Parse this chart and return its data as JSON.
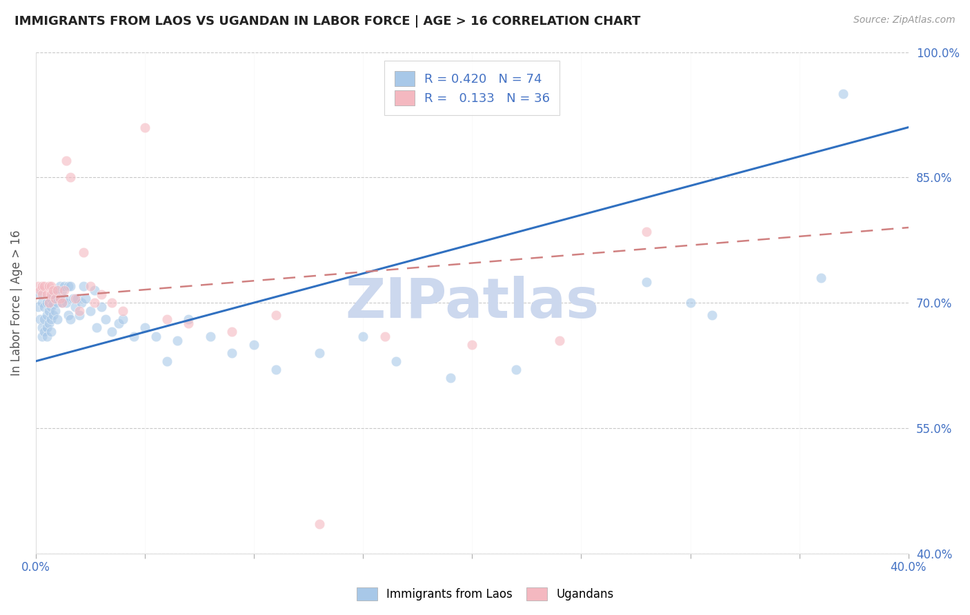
{
  "title": "IMMIGRANTS FROM LAOS VS UGANDAN IN LABOR FORCE | AGE > 16 CORRELATION CHART",
  "source_text": "Source: ZipAtlas.com",
  "ylabel": "In Labor Force | Age > 16",
  "xlim": [
    0.0,
    0.4
  ],
  "ylim": [
    0.4,
    1.0
  ],
  "xticks": [
    0.0,
    0.05,
    0.1,
    0.15,
    0.2,
    0.25,
    0.3,
    0.35,
    0.4
  ],
  "yticks": [
    0.4,
    0.55,
    0.7,
    0.85,
    1.0
  ],
  "yticklabels": [
    "40.0%",
    "55.0%",
    "70.0%",
    "85.0%",
    "100.0%"
  ],
  "legend1_r": "0.420",
  "legend1_n": "74",
  "legend2_r": "0.133",
  "legend2_n": "36",
  "legend1_color": "#a8c8e8",
  "legend2_color": "#f4b8c0",
  "line1_color": "#3070c0",
  "line2_color": "#d08080",
  "axis_color": "#4472c4",
  "grid_color": "#c8c8c8",
  "watermark_text": "ZIPatlas",
  "watermark_color": "#ccd8ee",
  "blue_scatter_x": [
    0.001,
    0.002,
    0.002,
    0.003,
    0.003,
    0.003,
    0.004,
    0.004,
    0.004,
    0.005,
    0.005,
    0.005,
    0.005,
    0.006,
    0.006,
    0.006,
    0.007,
    0.007,
    0.007,
    0.007,
    0.008,
    0.008,
    0.008,
    0.009,
    0.009,
    0.01,
    0.01,
    0.01,
    0.011,
    0.011,
    0.012,
    0.012,
    0.013,
    0.013,
    0.014,
    0.015,
    0.015,
    0.016,
    0.016,
    0.017,
    0.018,
    0.019,
    0.02,
    0.021,
    0.022,
    0.023,
    0.025,
    0.027,
    0.028,
    0.03,
    0.032,
    0.035,
    0.038,
    0.04,
    0.045,
    0.05,
    0.055,
    0.06,
    0.065,
    0.07,
    0.08,
    0.09,
    0.1,
    0.11,
    0.13,
    0.15,
    0.165,
    0.19,
    0.22,
    0.28,
    0.3,
    0.31,
    0.36,
    0.37
  ],
  "blue_scatter_y": [
    0.695,
    0.68,
    0.71,
    0.7,
    0.67,
    0.66,
    0.695,
    0.68,
    0.665,
    0.7,
    0.685,
    0.67,
    0.66,
    0.7,
    0.69,
    0.675,
    0.705,
    0.695,
    0.68,
    0.665,
    0.71,
    0.698,
    0.685,
    0.705,
    0.69,
    0.715,
    0.7,
    0.68,
    0.72,
    0.705,
    0.715,
    0.7,
    0.72,
    0.705,
    0.7,
    0.72,
    0.685,
    0.72,
    0.68,
    0.705,
    0.695,
    0.705,
    0.685,
    0.7,
    0.72,
    0.705,
    0.69,
    0.715,
    0.67,
    0.695,
    0.68,
    0.665,
    0.675,
    0.68,
    0.66,
    0.67,
    0.66,
    0.63,
    0.655,
    0.68,
    0.66,
    0.64,
    0.65,
    0.62,
    0.64,
    0.66,
    0.63,
    0.61,
    0.62,
    0.725,
    0.7,
    0.685,
    0.73,
    0.95
  ],
  "pink_scatter_x": [
    0.001,
    0.002,
    0.003,
    0.003,
    0.004,
    0.005,
    0.006,
    0.006,
    0.007,
    0.007,
    0.008,
    0.009,
    0.01,
    0.011,
    0.012,
    0.013,
    0.014,
    0.016,
    0.018,
    0.02,
    0.022,
    0.025,
    0.027,
    0.03,
    0.035,
    0.04,
    0.05,
    0.06,
    0.07,
    0.09,
    0.11,
    0.13,
    0.16,
    0.2,
    0.24,
    0.28
  ],
  "pink_scatter_y": [
    0.72,
    0.715,
    0.72,
    0.71,
    0.72,
    0.71,
    0.72,
    0.7,
    0.72,
    0.71,
    0.715,
    0.705,
    0.715,
    0.705,
    0.7,
    0.715,
    0.87,
    0.85,
    0.705,
    0.69,
    0.76,
    0.72,
    0.7,
    0.71,
    0.7,
    0.69,
    0.91,
    0.68,
    0.675,
    0.665,
    0.685,
    0.435,
    0.66,
    0.65,
    0.655,
    0.785
  ],
  "blue_regline_x": [
    0.0,
    0.4
  ],
  "blue_regline_y": [
    0.63,
    0.91
  ],
  "pink_regline_x": [
    0.0,
    0.4
  ],
  "pink_regline_y": [
    0.705,
    0.79
  ],
  "figsize": [
    14.06,
    8.92
  ],
  "dpi": 100
}
